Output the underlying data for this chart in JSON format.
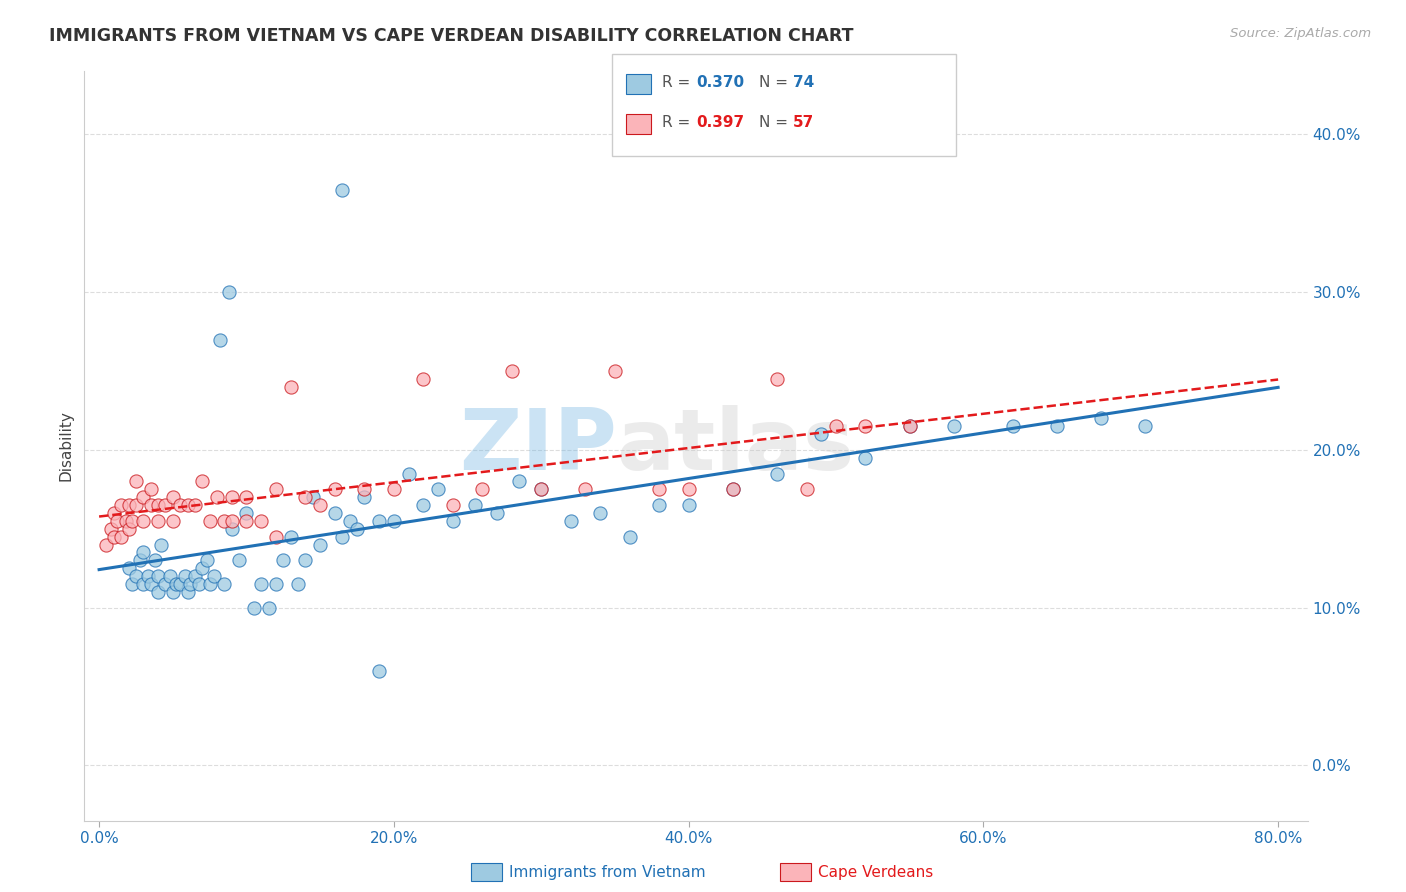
{
  "title": "IMMIGRANTS FROM VIETNAM VS CAPE VERDEAN DISABILITY CORRELATION CHART",
  "source": "Source: ZipAtlas.com",
  "legend1_label": "Immigrants from Vietnam",
  "legend2_label": "Cape Verdeans",
  "ylabel": "Disability",
  "R1": 0.37,
  "N1": 74,
  "R2": 0.397,
  "N2": 57,
  "color1_face": "#9ecae1",
  "color1_edge": "#2171b5",
  "color2_face": "#fbb4b9",
  "color2_edge": "#cb181d",
  "line_color1": "#2171b5",
  "line_color2": "#e31a1c",
  "xlim": [
    -0.01,
    0.82
  ],
  "ylim": [
    -0.035,
    0.44
  ],
  "ytick_vals": [
    0.0,
    0.1,
    0.2,
    0.3,
    0.4
  ],
  "xtick_vals": [
    0.0,
    0.2,
    0.4,
    0.6,
    0.8
  ],
  "watermark_zip": "ZIP",
  "watermark_atlas": "atlas",
  "background_color": "#ffffff",
  "blue_x": [
    0.02,
    0.022,
    0.025,
    0.028,
    0.03,
    0.03,
    0.033,
    0.035,
    0.038,
    0.04,
    0.04,
    0.042,
    0.045,
    0.048,
    0.05,
    0.052,
    0.055,
    0.058,
    0.06,
    0.062,
    0.065,
    0.068,
    0.07,
    0.073,
    0.075,
    0.078,
    0.082,
    0.085,
    0.088,
    0.09,
    0.095,
    0.1,
    0.105,
    0.11,
    0.115,
    0.12,
    0.125,
    0.13,
    0.135,
    0.14,
    0.145,
    0.15,
    0.16,
    0.165,
    0.17,
    0.175,
    0.18,
    0.19,
    0.2,
    0.21,
    0.22,
    0.23,
    0.24,
    0.255,
    0.27,
    0.285,
    0.3,
    0.32,
    0.34,
    0.36,
    0.38,
    0.4,
    0.43,
    0.46,
    0.49,
    0.52,
    0.55,
    0.58,
    0.62,
    0.65,
    0.68,
    0.71,
    0.165,
    0.19
  ],
  "blue_y": [
    0.125,
    0.115,
    0.12,
    0.13,
    0.115,
    0.135,
    0.12,
    0.115,
    0.13,
    0.11,
    0.12,
    0.14,
    0.115,
    0.12,
    0.11,
    0.115,
    0.115,
    0.12,
    0.11,
    0.115,
    0.12,
    0.115,
    0.125,
    0.13,
    0.115,
    0.12,
    0.27,
    0.115,
    0.3,
    0.15,
    0.13,
    0.16,
    0.1,
    0.115,
    0.1,
    0.115,
    0.13,
    0.145,
    0.115,
    0.13,
    0.17,
    0.14,
    0.16,
    0.145,
    0.155,
    0.15,
    0.17,
    0.155,
    0.155,
    0.185,
    0.165,
    0.175,
    0.155,
    0.165,
    0.16,
    0.18,
    0.175,
    0.155,
    0.16,
    0.145,
    0.165,
    0.165,
    0.175,
    0.185,
    0.21,
    0.195,
    0.215,
    0.215,
    0.215,
    0.215,
    0.22,
    0.215,
    0.365,
    0.06
  ],
  "pink_x": [
    0.005,
    0.008,
    0.01,
    0.01,
    0.012,
    0.015,
    0.015,
    0.018,
    0.02,
    0.02,
    0.022,
    0.025,
    0.025,
    0.03,
    0.03,
    0.035,
    0.035,
    0.04,
    0.04,
    0.045,
    0.05,
    0.05,
    0.055,
    0.06,
    0.065,
    0.07,
    0.075,
    0.08,
    0.085,
    0.09,
    0.09,
    0.1,
    0.1,
    0.11,
    0.12,
    0.12,
    0.13,
    0.14,
    0.15,
    0.16,
    0.18,
    0.2,
    0.22,
    0.24,
    0.26,
    0.28,
    0.3,
    0.33,
    0.35,
    0.38,
    0.4,
    0.43,
    0.46,
    0.48,
    0.5,
    0.52,
    0.55
  ],
  "pink_y": [
    0.14,
    0.15,
    0.145,
    0.16,
    0.155,
    0.145,
    0.165,
    0.155,
    0.15,
    0.165,
    0.155,
    0.165,
    0.18,
    0.155,
    0.17,
    0.165,
    0.175,
    0.165,
    0.155,
    0.165,
    0.155,
    0.17,
    0.165,
    0.165,
    0.165,
    0.18,
    0.155,
    0.17,
    0.155,
    0.17,
    0.155,
    0.17,
    0.155,
    0.155,
    0.145,
    0.175,
    0.24,
    0.17,
    0.165,
    0.175,
    0.175,
    0.175,
    0.245,
    0.165,
    0.175,
    0.25,
    0.175,
    0.175,
    0.25,
    0.175,
    0.175,
    0.175,
    0.245,
    0.175,
    0.215,
    0.215,
    0.215
  ]
}
